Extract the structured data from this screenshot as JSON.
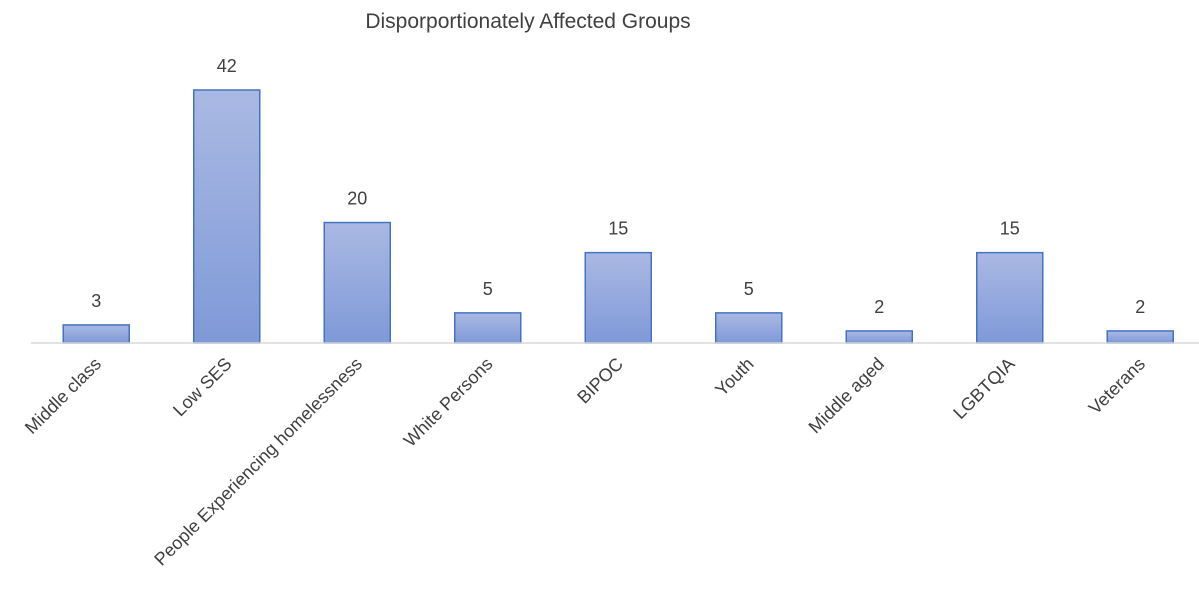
{
  "chart_data": {
    "type": "bar",
    "title": "Disporportionately Affected Groups",
    "xlabel": "",
    "ylabel": "",
    "categories": [
      "Middle class",
      "Low SES",
      "People Experiencing homelessness",
      "White Persons",
      "BIPOC",
      "Youth",
      "Middle aged",
      "LGBTQIA",
      "Veterans"
    ],
    "values": [
      3,
      42,
      20,
      5,
      15,
      5,
      2,
      15,
      2
    ],
    "ylim": [
      0,
      42
    ],
    "grid": false,
    "legend": "none",
    "bar_color": "#8fa6dc",
    "bar_border_color": "#4472c4",
    "axis_color": "#d9d9d9",
    "text_color": "#404040"
  }
}
